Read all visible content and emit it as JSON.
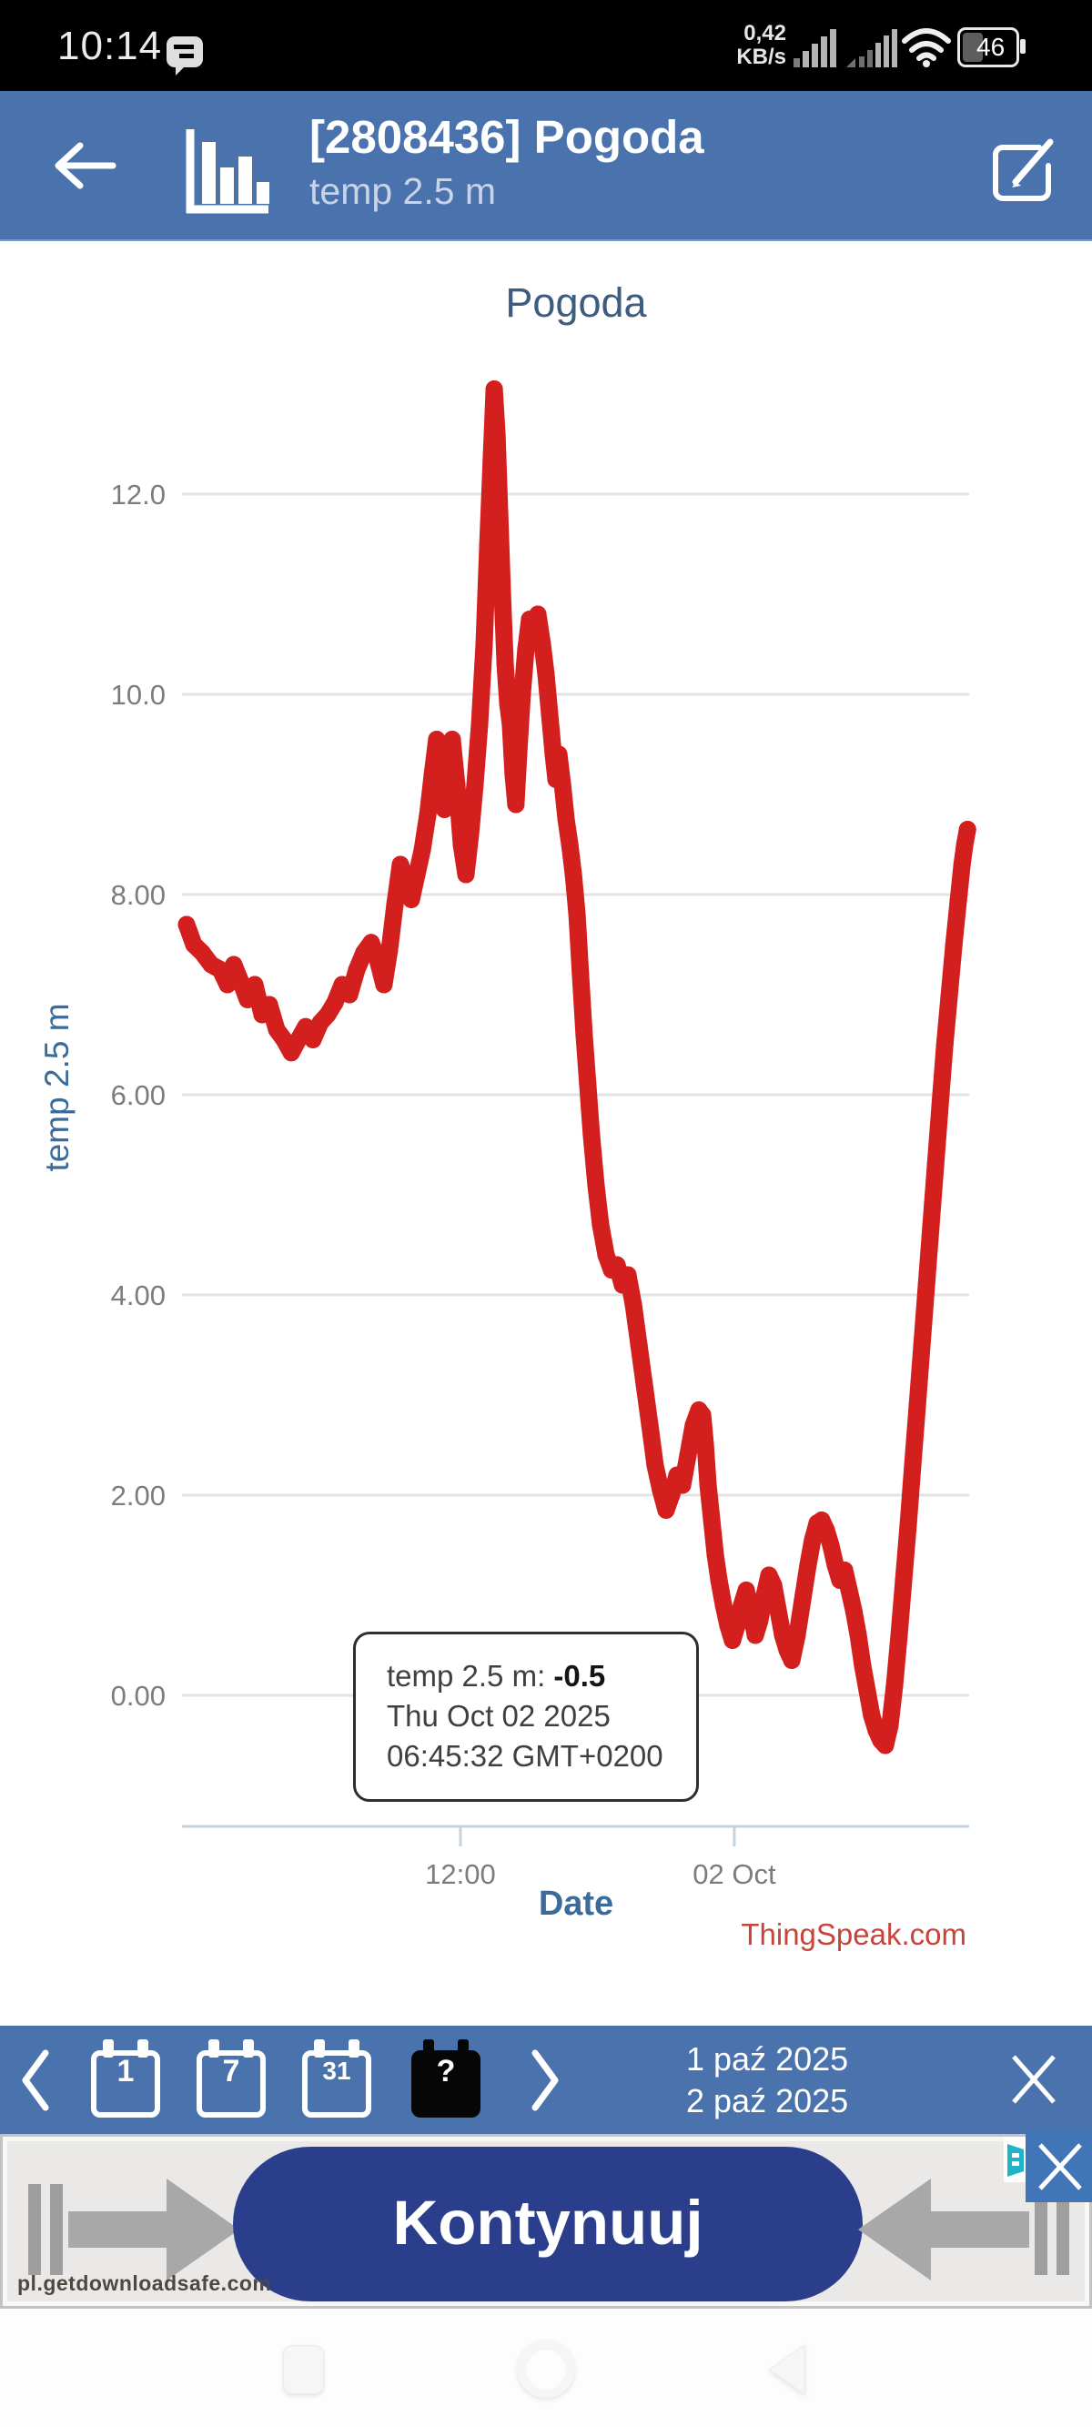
{
  "colors": {
    "accent_blue": "#4a73ad",
    "line_red": "#d41f1f",
    "navy_button": "#2b3e8c",
    "watermark_red": "#c7443b",
    "chart_text_blue": "#3a6b9b",
    "chart_title_blue": "#3d5c7e",
    "tick_grey": "#7c7c7c",
    "grid_grey": "#e3e3e3",
    "axis_blue_grey": "#c5d3e1",
    "ad_close_blue": "#4076b8",
    "adchoices_teal": "#23b3c7"
  },
  "status_bar": {
    "time": "10:14",
    "throughput_value": "0,42",
    "throughput_unit": "KB/s",
    "battery_percent": "46"
  },
  "header": {
    "title": "[2808436] Pogoda",
    "subtitle": "temp 2.5 m"
  },
  "chart": {
    "title": "Pogoda",
    "y_axis_label": "temp 2.5 m",
    "x_axis_label": "Date",
    "watermark": "ThingSpeak.com",
    "tooltip": {
      "label": "temp 2.5 m:",
      "value": "-0.5",
      "date": "Thu Oct 02 2025",
      "time": "06:45:32 GMT+0200"
    }
  },
  "chart_data": {
    "type": "line",
    "title": "Pogoda",
    "xlabel": "Date",
    "ylabel": "temp 2.5 m",
    "x_unit": "hours since 2025-10-01 00:00 GMT+0200",
    "ylim": [
      -1.31,
      13.12
    ],
    "xlim": [
      0,
      34.22
    ],
    "grid": true,
    "x_ticks": [
      {
        "t": 12.0,
        "label": "12:00"
      },
      {
        "t": 24.0,
        "label": "02 Oct"
      }
    ],
    "y_ticks": [
      {
        "v": 0,
        "label": "0.00"
      },
      {
        "v": 2,
        "label": "2.00"
      },
      {
        "v": 4,
        "label": "4.00"
      },
      {
        "v": 6,
        "label": "6.00"
      },
      {
        "v": 8,
        "label": "8.00"
      },
      {
        "v": 10,
        "label": "10.0"
      },
      {
        "v": 12,
        "label": "12.0"
      }
    ],
    "series": [
      {
        "name": "temp 2.5 m",
        "color": "#d41f1f",
        "points": [
          [
            0,
            7.7
          ],
          [
            0.32,
            7.5
          ],
          [
            0.68,
            7.42
          ],
          [
            1.08,
            7.3
          ],
          [
            1.48,
            7.25
          ],
          [
            1.79,
            7.1
          ],
          [
            2.07,
            7.3
          ],
          [
            2.39,
            7.12
          ],
          [
            2.67,
            6.95
          ],
          [
            2.99,
            7.1
          ],
          [
            3.31,
            6.8
          ],
          [
            3.63,
            6.9
          ],
          [
            3.95,
            6.65
          ],
          [
            4.27,
            6.55
          ],
          [
            4.59,
            6.42
          ],
          [
            4.9,
            6.55
          ],
          [
            5.22,
            6.68
          ],
          [
            5.54,
            6.55
          ],
          [
            5.86,
            6.72
          ],
          [
            6.18,
            6.8
          ],
          [
            6.5,
            6.92
          ],
          [
            6.82,
            7.1
          ],
          [
            7.14,
            7.0
          ],
          [
            7.46,
            7.25
          ],
          [
            7.77,
            7.42
          ],
          [
            8.09,
            7.52
          ],
          [
            8.37,
            7.35
          ],
          [
            8.65,
            7.1
          ],
          [
            8.89,
            7.45
          ],
          [
            9.13,
            7.9
          ],
          [
            9.37,
            8.3
          ],
          [
            9.61,
            8.15
          ],
          [
            9.85,
            7.95
          ],
          [
            10.09,
            8.2
          ],
          [
            10.33,
            8.45
          ],
          [
            10.57,
            8.8
          ],
          [
            10.77,
            9.2
          ],
          [
            10.96,
            9.55
          ],
          [
            11.2,
            9.3
          ],
          [
            11.3,
            8.85
          ],
          [
            11.4,
            9.3
          ],
          [
            11.64,
            9.55
          ],
          [
            11.84,
            9.1
          ],
          [
            12.04,
            8.5
          ],
          [
            12.24,
            8.2
          ],
          [
            12.44,
            8.6
          ],
          [
            12.64,
            9.1
          ],
          [
            12.84,
            9.7
          ],
          [
            13.04,
            10.5
          ],
          [
            13.2,
            11.5
          ],
          [
            13.36,
            12.4
          ],
          [
            13.48,
            13.05
          ],
          [
            13.6,
            12.6
          ],
          [
            13.72,
            11.8
          ],
          [
            13.84,
            11.0
          ],
          [
            13.96,
            10.3
          ],
          [
            14.08,
            9.9
          ],
          [
            14.19,
            9.7
          ],
          [
            14.31,
            9.2
          ],
          [
            14.43,
            8.9
          ],
          [
            14.55,
            9.4
          ],
          [
            14.71,
            10.0
          ],
          [
            14.87,
            10.45
          ],
          [
            15.03,
            10.75
          ],
          [
            15.23,
            10.6
          ],
          [
            15.39,
            10.8
          ],
          [
            15.59,
            10.5
          ],
          [
            15.75,
            10.2
          ],
          [
            15.91,
            9.8
          ],
          [
            16.07,
            9.4
          ],
          [
            16.19,
            9.15
          ],
          [
            16.31,
            9.4
          ],
          [
            16.47,
            9.1
          ],
          [
            16.63,
            8.75
          ],
          [
            16.79,
            8.5
          ],
          [
            16.95,
            8.2
          ],
          [
            17.11,
            7.8
          ],
          [
            17.26,
            7.2
          ],
          [
            17.42,
            6.6
          ],
          [
            17.58,
            6.1
          ],
          [
            17.74,
            5.6
          ],
          [
            17.94,
            5.1
          ],
          [
            18.14,
            4.7
          ],
          [
            18.38,
            4.4
          ],
          [
            18.62,
            4.25
          ],
          [
            18.86,
            4.3
          ],
          [
            19.1,
            4.1
          ],
          [
            19.34,
            4.2
          ],
          [
            19.58,
            3.9
          ],
          [
            19.82,
            3.5
          ],
          [
            20.06,
            3.1
          ],
          [
            20.3,
            2.7
          ],
          [
            20.53,
            2.3
          ],
          [
            20.77,
            2.05
          ],
          [
            21.01,
            1.85
          ],
          [
            21.25,
            2.0
          ],
          [
            21.49,
            2.2
          ],
          [
            21.73,
            2.1
          ],
          [
            21.97,
            2.4
          ],
          [
            22.21,
            2.7
          ],
          [
            22.45,
            2.85
          ],
          [
            22.61,
            2.8
          ],
          [
            22.73,
            2.5
          ],
          [
            22.85,
            2.1
          ],
          [
            23.01,
            1.75
          ],
          [
            23.17,
            1.4
          ],
          [
            23.33,
            1.15
          ],
          [
            23.53,
            0.9
          ],
          [
            23.72,
            0.7
          ],
          [
            23.92,
            0.55
          ],
          [
            24.12,
            0.7
          ],
          [
            24.32,
            0.9
          ],
          [
            24.52,
            1.05
          ],
          [
            24.72,
            0.85
          ],
          [
            24.92,
            0.6
          ],
          [
            25.12,
            0.75
          ],
          [
            25.32,
            1.0
          ],
          [
            25.52,
            1.2
          ],
          [
            25.72,
            1.1
          ],
          [
            25.92,
            0.85
          ],
          [
            26.12,
            0.6
          ],
          [
            26.32,
            0.45
          ],
          [
            26.52,
            0.35
          ],
          [
            26.75,
            0.6
          ],
          [
            26.99,
            0.95
          ],
          [
            27.23,
            1.3
          ],
          [
            27.43,
            1.55
          ],
          [
            27.63,
            1.72
          ],
          [
            27.83,
            1.75
          ],
          [
            28.03,
            1.65
          ],
          [
            28.23,
            1.5
          ],
          [
            28.43,
            1.3
          ],
          [
            28.63,
            1.15
          ],
          [
            28.83,
            1.25
          ],
          [
            29.03,
            1.05
          ],
          [
            29.23,
            0.85
          ],
          [
            29.43,
            0.6
          ],
          [
            29.62,
            0.3
          ],
          [
            29.82,
            0.05
          ],
          [
            30.02,
            -0.2
          ],
          [
            30.22,
            -0.35
          ],
          [
            30.42,
            -0.45
          ],
          [
            30.62,
            -0.5
          ],
          [
            30.82,
            -0.3
          ],
          [
            31.02,
            0.1
          ],
          [
            31.22,
            0.6
          ],
          [
            31.42,
            1.15
          ],
          [
            31.62,
            1.7
          ],
          [
            31.82,
            2.3
          ],
          [
            32.02,
            2.9
          ],
          [
            32.22,
            3.5
          ],
          [
            32.42,
            4.1
          ],
          [
            32.62,
            4.7
          ],
          [
            32.82,
            5.3
          ],
          [
            33.02,
            5.9
          ],
          [
            33.22,
            6.5
          ],
          [
            33.42,
            7.0
          ],
          [
            33.62,
            7.5
          ],
          [
            33.82,
            7.95
          ],
          [
            33.98,
            8.3
          ],
          [
            34.1,
            8.5
          ],
          [
            34.22,
            8.65
          ]
        ]
      }
    ]
  },
  "toolbar": {
    "range_buttons": [
      {
        "label": "1",
        "name": "range-1-day-button",
        "dark": false,
        "small": false
      },
      {
        "label": "7",
        "name": "range-7-days-button",
        "dark": false,
        "small": false
      },
      {
        "label": "31",
        "name": "range-31-days-button",
        "dark": false,
        "small": true
      },
      {
        "label": "?",
        "name": "range-custom-button",
        "dark": true,
        "small": false
      }
    ],
    "date_from": "1 paź 2025",
    "date_to": "2 paź 2025"
  },
  "ad": {
    "cta": "Kontynuuj",
    "domain": "pl.getdownloadsafe.com"
  }
}
